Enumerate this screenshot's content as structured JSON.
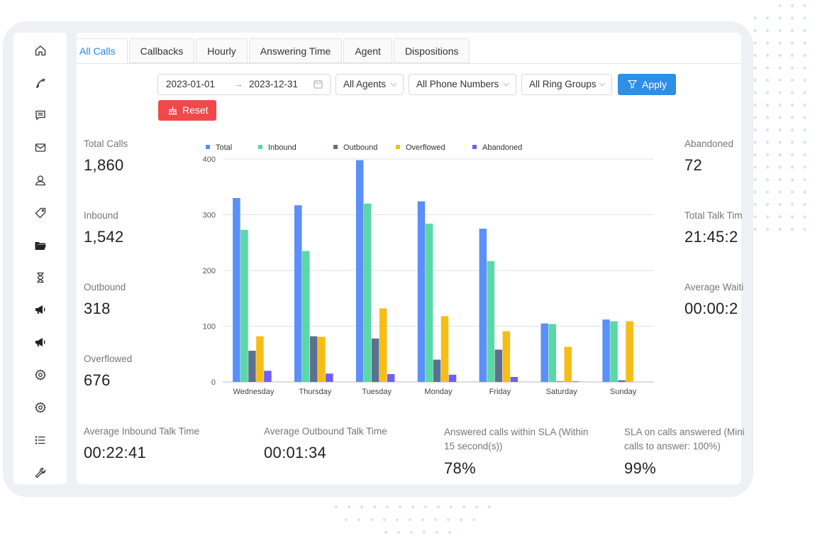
{
  "tabs": [
    "All Calls",
    "Callbacks",
    "Hourly",
    "Answering Time",
    "Agent",
    "Dispositions"
  ],
  "filters": {
    "date_start": "2023-01-01",
    "date_arrow": "→",
    "date_end": "2023-12-31",
    "agents": "All Agents",
    "phone_numbers": "All Phone Numbers",
    "ring_groups": "All Ring Groups",
    "apply_label": "Apply",
    "reset_label": "Reset"
  },
  "sidebar_icons": [
    "home-icon",
    "phone-icon",
    "message-icon",
    "mail-icon",
    "user-icon",
    "tag-icon",
    "folder-icon",
    "hourglass-icon",
    "megaphone-icon",
    "megaphone-icon",
    "gear-icon",
    "gear-icon",
    "list-icon",
    "wrench-icon"
  ],
  "stats_left": [
    {
      "label": "Total Calls",
      "value": "1,860"
    },
    {
      "label": "Inbound",
      "value": "1,542"
    },
    {
      "label": "Outbound",
      "value": "318"
    },
    {
      "label": "Overflowed",
      "value": "676"
    }
  ],
  "stats_right": [
    {
      "label": "Abandoned",
      "value": "72"
    },
    {
      "label": "Total Talk Tim",
      "value": "21:45:2"
    },
    {
      "label": "Average Waiti",
      "value": "00:00:2"
    }
  ],
  "stats_bottom": [
    {
      "label": "Average Inbound Talk Time",
      "value": "00:22:41"
    },
    {
      "label": "Average Outbound Talk Time",
      "value": "00:01:34"
    },
    {
      "label": "Answered calls within SLA (Within 15 second(s))",
      "value": "78%"
    },
    {
      "label": "SLA on calls answered (Mini calls to answer: 100%)",
      "value": "99%"
    }
  ],
  "chart_data": {
    "type": "bar",
    "categories": [
      "Wednesday",
      "Thursday",
      "Tuesday",
      "Monday",
      "Friday",
      "Saturday",
      "Sunday"
    ],
    "series": [
      {
        "name": "Total",
        "color": "#5b8ff9",
        "values": [
          330,
          317,
          398,
          324,
          275,
          105,
          112
        ]
      },
      {
        "name": "Inbound",
        "color": "#5ad8a6",
        "values": [
          273,
          235,
          320,
          284,
          217,
          104,
          109
        ]
      },
      {
        "name": "Outbound",
        "color": "#5d7092",
        "values": [
          56,
          82,
          78,
          40,
          58,
          1,
          3
        ]
      },
      {
        "name": "Overflowed",
        "color": "#f6bd16",
        "values": [
          82,
          81,
          132,
          118,
          91,
          63,
          109
        ]
      },
      {
        "name": "Abandoned",
        "color": "#6f5ef9",
        "values": [
          20,
          15,
          14,
          13,
          9,
          1,
          0
        ]
      }
    ],
    "ylim": [
      0,
      400
    ],
    "yticks": [
      0,
      100,
      200,
      300,
      400
    ],
    "legend": "top",
    "grid": true
  }
}
